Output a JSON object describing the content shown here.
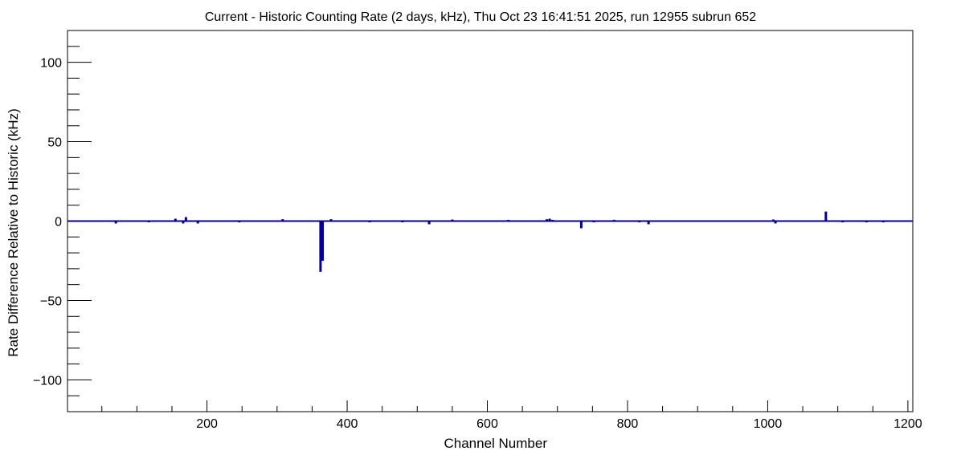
{
  "chart_data": {
    "type": "bar",
    "title": "Current - Historic Counting Rate (2 days, kHz), Thu Oct 23 16:41:51 2025, run 12955 subrun 652",
    "xlabel": "Channel Number",
    "ylabel": "Rate Difference Relative to Historic (kHz)",
    "xlim": [
      1,
      1207
    ],
    "ylim": [
      -120,
      120
    ],
    "x_ticks": [
      200,
      400,
      600,
      800,
      1000,
      1200
    ],
    "y_ticks": [
      -100,
      -50,
      0,
      50,
      100
    ],
    "grid": false,
    "legend": "none",
    "series": [
      {
        "color": "#000099",
        "baseline": 0,
        "points": [
          {
            "x": 70,
            "y": -1.5
          },
          {
            "x": 117,
            "y": -0.8
          },
          {
            "x": 155,
            "y": 1.5
          },
          {
            "x": 166,
            "y": -1.5
          },
          {
            "x": 170,
            "y": 2.5
          },
          {
            "x": 187,
            "y": -1.5
          },
          {
            "x": 246,
            "y": -0.8
          },
          {
            "x": 308,
            "y": 1.2
          },
          {
            "x": 362,
            "y": -32
          },
          {
            "x": 365,
            "y": -25
          },
          {
            "x": 377,
            "y": 1.2
          },
          {
            "x": 432,
            "y": -0.8
          },
          {
            "x": 479,
            "y": -0.8
          },
          {
            "x": 517,
            "y": -2
          },
          {
            "x": 550,
            "y": 1
          },
          {
            "x": 630,
            "y": 0.8
          },
          {
            "x": 685,
            "y": 1.2
          },
          {
            "x": 689,
            "y": 1.5
          },
          {
            "x": 693,
            "y": 0.8
          },
          {
            "x": 734,
            "y": -4.5
          },
          {
            "x": 752,
            "y": -0.8
          },
          {
            "x": 781,
            "y": 0.8
          },
          {
            "x": 817,
            "y": -0.8
          },
          {
            "x": 830,
            "y": -2
          },
          {
            "x": 1008,
            "y": 1
          },
          {
            "x": 1011,
            "y": -1.5
          },
          {
            "x": 1083,
            "y": 6
          },
          {
            "x": 1107,
            "y": -0.8
          },
          {
            "x": 1141,
            "y": -0.8
          },
          {
            "x": 1165,
            "y": -0.8
          }
        ]
      }
    ]
  }
}
